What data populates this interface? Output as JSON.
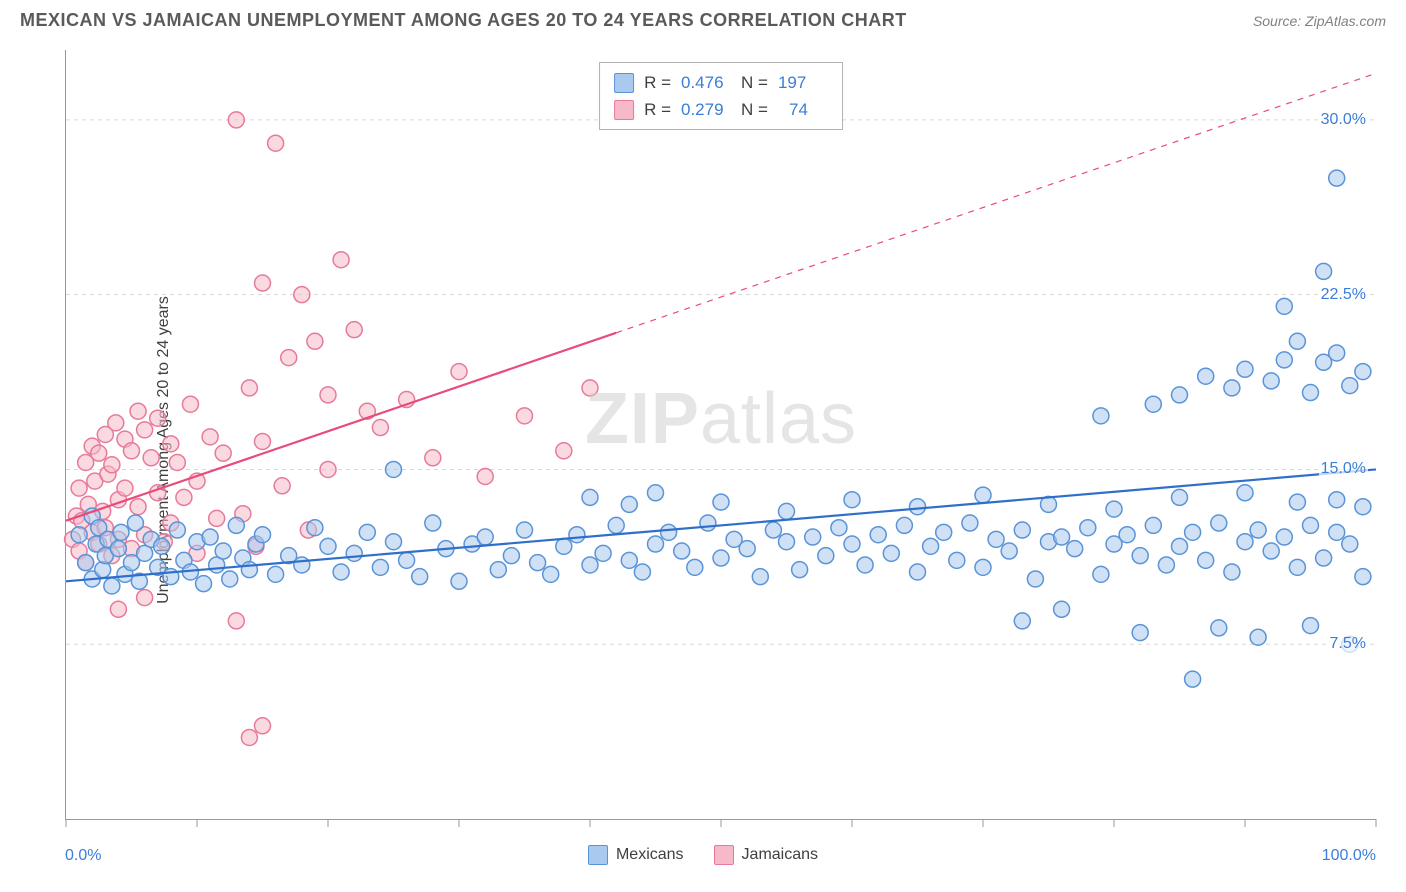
{
  "header": {
    "title": "MEXICAN VS JAMAICAN UNEMPLOYMENT AMONG AGES 20 TO 24 YEARS CORRELATION CHART",
    "source": "Source: ZipAtlas.com"
  },
  "watermark": {
    "zip": "ZIP",
    "atlas": "atlas"
  },
  "y_axis": {
    "label": "Unemployment Among Ages 20 to 24 years"
  },
  "x_axis": {
    "min_label": "0.0%",
    "max_label": "100.0%"
  },
  "chart": {
    "type": "scatter",
    "background_color": "#ffffff",
    "grid_color": "#d8d8d8",
    "grid_dash": "4,4",
    "axis_color": "#999999",
    "xlim": [
      0,
      100
    ],
    "ylim": [
      0,
      33
    ],
    "x_ticks": [
      0,
      10,
      20,
      30,
      40,
      50,
      60,
      70,
      80,
      90,
      100
    ],
    "y_ticks": [
      7.5,
      15.0,
      22.5,
      30.0
    ],
    "y_tick_labels": [
      "7.5%",
      "15.0%",
      "22.5%",
      "30.0%"
    ],
    "marker_radius": 8,
    "marker_stroke_width": 1.5,
    "trend_line_width": 2.2
  },
  "series": {
    "mexicans": {
      "label": "Mexicans",
      "fill": "#a9c9ef",
      "stroke": "#5a94d8",
      "fill_opacity": 0.55,
      "r_value": "0.476",
      "n_value": "197",
      "trend": {
        "x1": 0,
        "y1": 10.2,
        "x2": 100,
        "y2": 15.0,
        "solid_end_x": 100,
        "color": "#2f6fc9"
      }
    },
    "jamaicans": {
      "label": "Jamaicans",
      "fill": "#f7b9c9",
      "stroke": "#e77a9a",
      "fill_opacity": 0.55,
      "r_value": "0.279",
      "n_value": "74",
      "trend": {
        "x1": 0,
        "y1": 12.8,
        "x2": 100,
        "y2": 32.0,
        "solid_end_x": 42,
        "color": "#e94b7a"
      }
    }
  },
  "legend_labels": {
    "R": "R =",
    "N": "N ="
  },
  "points": {
    "mexicans": [
      [
        1,
        12.2
      ],
      [
        1.5,
        11
      ],
      [
        2,
        13
      ],
      [
        2,
        10.3
      ],
      [
        2.3,
        11.8
      ],
      [
        2.5,
        12.5
      ],
      [
        2.8,
        10.7
      ],
      [
        3,
        11.3
      ],
      [
        3.2,
        12
      ],
      [
        3.5,
        10
      ],
      [
        4,
        11.6
      ],
      [
        4.2,
        12.3
      ],
      [
        4.5,
        10.5
      ],
      [
        5,
        11
      ],
      [
        5.3,
        12.7
      ],
      [
        5.6,
        10.2
      ],
      [
        6,
        11.4
      ],
      [
        6.5,
        12
      ],
      [
        7,
        10.8
      ],
      [
        7.3,
        11.7
      ],
      [
        8,
        10.4
      ],
      [
        8.5,
        12.4
      ],
      [
        9,
        11.1
      ],
      [
        9.5,
        10.6
      ],
      [
        10,
        11.9
      ],
      [
        10.5,
        10.1
      ],
      [
        11,
        12.1
      ],
      [
        11.5,
        10.9
      ],
      [
        12,
        11.5
      ],
      [
        12.5,
        10.3
      ],
      [
        13,
        12.6
      ],
      [
        13.5,
        11.2
      ],
      [
        14,
        10.7
      ],
      [
        14.5,
        11.8
      ],
      [
        15,
        12.2
      ],
      [
        16,
        10.5
      ],
      [
        17,
        11.3
      ],
      [
        18,
        10.9
      ],
      [
        19,
        12.5
      ],
      [
        20,
        11.7
      ],
      [
        21,
        10.6
      ],
      [
        22,
        11.4
      ],
      [
        23,
        12.3
      ],
      [
        24,
        10.8
      ],
      [
        25,
        11.9
      ],
      [
        25,
        15
      ],
      [
        26,
        11.1
      ],
      [
        27,
        10.4
      ],
      [
        28,
        12.7
      ],
      [
        29,
        11.6
      ],
      [
        30,
        10.2
      ],
      [
        31,
        11.8
      ],
      [
        32,
        12.1
      ],
      [
        33,
        10.7
      ],
      [
        34,
        11.3
      ],
      [
        35,
        12.4
      ],
      [
        36,
        11
      ],
      [
        37,
        10.5
      ],
      [
        38,
        11.7
      ],
      [
        39,
        12.2
      ],
      [
        40,
        10.9
      ],
      [
        40,
        13.8
      ],
      [
        41,
        11.4
      ],
      [
        42,
        12.6
      ],
      [
        43,
        11.1
      ],
      [
        43,
        13.5
      ],
      [
        44,
        10.6
      ],
      [
        45,
        11.8
      ],
      [
        45,
        14
      ],
      [
        46,
        12.3
      ],
      [
        47,
        11.5
      ],
      [
        48,
        10.8
      ],
      [
        49,
        12.7
      ],
      [
        50,
        11.2
      ],
      [
        50,
        13.6
      ],
      [
        51,
        12
      ],
      [
        52,
        11.6
      ],
      [
        53,
        10.4
      ],
      [
        54,
        12.4
      ],
      [
        55,
        11.9
      ],
      [
        55,
        13.2
      ],
      [
        56,
        10.7
      ],
      [
        57,
        12.1
      ],
      [
        58,
        11.3
      ],
      [
        59,
        12.5
      ],
      [
        60,
        11.8
      ],
      [
        60,
        13.7
      ],
      [
        61,
        10.9
      ],
      [
        62,
        12.2
      ],
      [
        63,
        11.4
      ],
      [
        64,
        12.6
      ],
      [
        65,
        10.6
      ],
      [
        65,
        13.4
      ],
      [
        66,
        11.7
      ],
      [
        67,
        12.3
      ],
      [
        68,
        11.1
      ],
      [
        69,
        12.7
      ],
      [
        70,
        10.8
      ],
      [
        70,
        13.9
      ],
      [
        71,
        12
      ],
      [
        72,
        11.5
      ],
      [
        73,
        12.4
      ],
      [
        73,
        8.5
      ],
      [
        74,
        10.3
      ],
      [
        75,
        11.9
      ],
      [
        75,
        13.5
      ],
      [
        76,
        12.1
      ],
      [
        76,
        9
      ],
      [
        77,
        11.6
      ],
      [
        78,
        12.5
      ],
      [
        79,
        10.5
      ],
      [
        79,
        17.3
      ],
      [
        80,
        11.8
      ],
      [
        80,
        13.3
      ],
      [
        81,
        12.2
      ],
      [
        82,
        11.3
      ],
      [
        82,
        8
      ],
      [
        83,
        12.6
      ],
      [
        83,
        17.8
      ],
      [
        84,
        10.9
      ],
      [
        85,
        11.7
      ],
      [
        85,
        13.8
      ],
      [
        85,
        18.2
      ],
      [
        86,
        12.3
      ],
      [
        86,
        6
      ],
      [
        87,
        11.1
      ],
      [
        87,
        19
      ],
      [
        88,
        12.7
      ],
      [
        88,
        8.2
      ],
      [
        89,
        10.6
      ],
      [
        89,
        18.5
      ],
      [
        90,
        11.9
      ],
      [
        90,
        14
      ],
      [
        90,
        19.3
      ],
      [
        91,
        12.4
      ],
      [
        91,
        7.8
      ],
      [
        92,
        11.5
      ],
      [
        92,
        18.8
      ],
      [
        93,
        12.1
      ],
      [
        93,
        19.7
      ],
      [
        93,
        22
      ],
      [
        94,
        10.8
      ],
      [
        94,
        13.6
      ],
      [
        94,
        20.5
      ],
      [
        95,
        12.6
      ],
      [
        95,
        8.3
      ],
      [
        95,
        18.3
      ],
      [
        96,
        11.2
      ],
      [
        96,
        19.6
      ],
      [
        96,
        23.5
      ],
      [
        97,
        12.3
      ],
      [
        97,
        13.7
      ],
      [
        97,
        20
      ],
      [
        97,
        27.5
      ],
      [
        98,
        11.8
      ],
      [
        98,
        7.5
      ],
      [
        98,
        18.6
      ],
      [
        99,
        10.4
      ],
      [
        99,
        13.4
      ],
      [
        99,
        19.2
      ]
    ],
    "jamaicans": [
      [
        0.5,
        12
      ],
      [
        0.8,
        13
      ],
      [
        1,
        11.5
      ],
      [
        1,
        14.2
      ],
      [
        1.2,
        12.8
      ],
      [
        1.5,
        11
      ],
      [
        1.5,
        15.3
      ],
      [
        1.7,
        13.5
      ],
      [
        2,
        12.3
      ],
      [
        2,
        16
      ],
      [
        2.2,
        14.5
      ],
      [
        2.5,
        11.8
      ],
      [
        2.5,
        15.7
      ],
      [
        2.8,
        13.2
      ],
      [
        3,
        12.5
      ],
      [
        3,
        16.5
      ],
      [
        3.2,
        14.8
      ],
      [
        3.5,
        11.3
      ],
      [
        3.5,
        15.2
      ],
      [
        3.8,
        17
      ],
      [
        4,
        13.7
      ],
      [
        4,
        12
      ],
      [
        4.5,
        16.3
      ],
      [
        4.5,
        14.2
      ],
      [
        5,
        15.8
      ],
      [
        5,
        11.6
      ],
      [
        5.5,
        17.5
      ],
      [
        5.5,
        13.4
      ],
      [
        6,
        16.7
      ],
      [
        6,
        12.2
      ],
      [
        6.5,
        15.5
      ],
      [
        7,
        14
      ],
      [
        7,
        17.2
      ],
      [
        7.5,
        11.9
      ],
      [
        8,
        16.1
      ],
      [
        8,
        12.7
      ],
      [
        8.5,
        15.3
      ],
      [
        9,
        13.8
      ],
      [
        9.5,
        17.8
      ],
      [
        10,
        14.5
      ],
      [
        10,
        11.4
      ],
      [
        11,
        16.4
      ],
      [
        11.5,
        12.9
      ],
      [
        12,
        15.7
      ],
      [
        13,
        30
      ],
      [
        13.5,
        13.1
      ],
      [
        14,
        18.5
      ],
      [
        14.5,
        11.7
      ],
      [
        15,
        23
      ],
      [
        15,
        16.2
      ],
      [
        16,
        29
      ],
      [
        16.5,
        14.3
      ],
      [
        17,
        19.8
      ],
      [
        18,
        22.5
      ],
      [
        18.5,
        12.4
      ],
      [
        19,
        20.5
      ],
      [
        20,
        18.2
      ],
      [
        20,
        15
      ],
      [
        21,
        24
      ],
      [
        22,
        21
      ],
      [
        23,
        17.5
      ],
      [
        14,
        3.5
      ],
      [
        15,
        4
      ],
      [
        24,
        16.8
      ],
      [
        26,
        18
      ],
      [
        28,
        15.5
      ],
      [
        30,
        19.2
      ],
      [
        32,
        14.7
      ],
      [
        35,
        17.3
      ],
      [
        38,
        15.8
      ],
      [
        40,
        18.5
      ],
      [
        13,
        8.5
      ],
      [
        6,
        9.5
      ],
      [
        4,
        9
      ]
    ]
  }
}
